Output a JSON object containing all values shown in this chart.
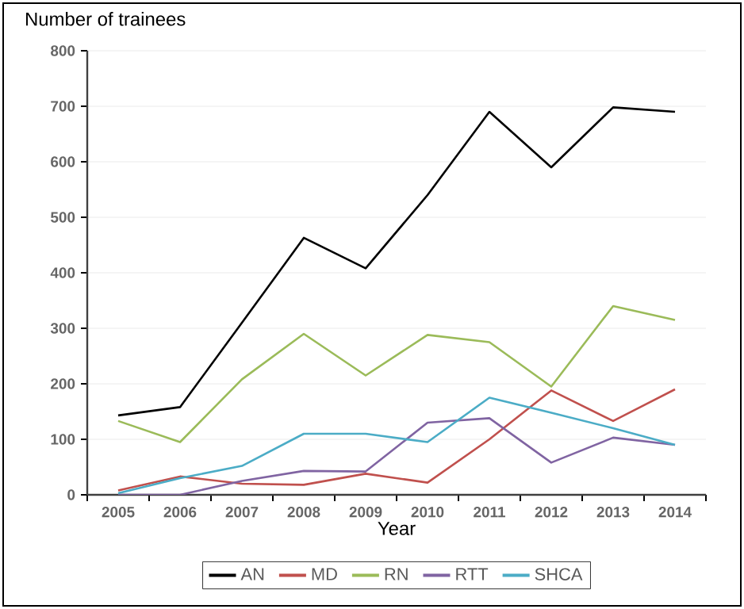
{
  "chart_data": {
    "type": "line",
    "title": "Number of trainees",
    "xlabel": "Year",
    "categories": [
      "2005",
      "2006",
      "2007",
      "2008",
      "2009",
      "2010",
      "2011",
      "2012",
      "2013",
      "2014"
    ],
    "ylim": [
      0,
      800
    ],
    "yticks": [
      0,
      100,
      200,
      300,
      400,
      500,
      600,
      700,
      800
    ],
    "grid": "y",
    "legend": "bottom",
    "line_style": "solid",
    "series": [
      {
        "name": "AN",
        "color": "#000000",
        "values": [
          143,
          158,
          310,
          463,
          408,
          540,
          690,
          590,
          698,
          690
        ]
      },
      {
        "name": "MD",
        "color": "#c0504d",
        "values": [
          8,
          33,
          20,
          18,
          38,
          22,
          100,
          188,
          133,
          190
        ]
      },
      {
        "name": "RN",
        "color": "#9bbb59",
        "values": [
          133,
          95,
          208,
          290,
          215,
          288,
          275,
          195,
          340,
          315
        ]
      },
      {
        "name": "RTT",
        "color": "#8064a2",
        "values": [
          0,
          0,
          25,
          43,
          42,
          130,
          138,
          58,
          103,
          90
        ]
      },
      {
        "name": "SHCA",
        "color": "#4bacc6",
        "values": [
          3,
          30,
          52,
          110,
          110,
          95,
          175,
          148,
          120,
          90
        ]
      }
    ]
  }
}
